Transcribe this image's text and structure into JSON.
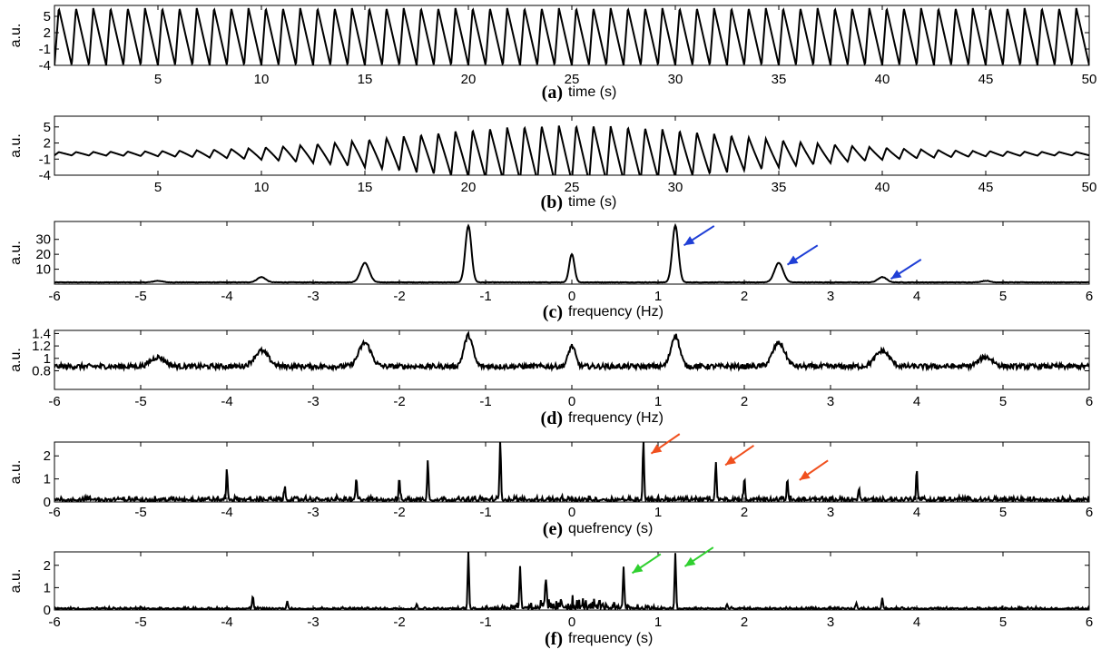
{
  "figure": {
    "colors": {
      "axis": "#000000",
      "trace": "#000000",
      "blue_arrow": "#1f3fd6",
      "red_arrow": "#f0501e",
      "green_arrow": "#2fd02f"
    }
  },
  "chart_data": [
    {
      "id": "a",
      "type": "line",
      "panel_label": "(a)",
      "xlabel": "time (s)",
      "ylabel": "a.u.",
      "xlim": [
        0,
        50
      ],
      "ylim": [
        -4,
        7
      ],
      "xticks": [
        5,
        10,
        15,
        20,
        25,
        30,
        35,
        40,
        45,
        50
      ],
      "yticks": [
        -4,
        -1,
        2,
        5
      ],
      "signal": {
        "kind": "sawtooth",
        "fundamental_hz": 1.2,
        "peak": 6.5,
        "trough": -4,
        "rise_fraction": 0.25,
        "envelope": "constant"
      },
      "arrows": []
    },
    {
      "id": "b",
      "type": "line",
      "panel_label": "(b)",
      "xlabel": "time (s)",
      "ylabel": "a.u.",
      "xlim": [
        0,
        50
      ],
      "ylim": [
        -4,
        7
      ],
      "xticks": [
        5,
        10,
        15,
        20,
        25,
        30,
        35,
        40,
        45,
        50
      ],
      "yticks": [
        -4,
        -1,
        2,
        5
      ],
      "signal": {
        "kind": "sawtooth",
        "fundamental_hz": 1.2,
        "peak": 6.5,
        "trough": -4,
        "rise_fraction": 0.25,
        "envelope": "gaussian",
        "envelope_center_s": 25,
        "envelope_sigma_s": 8,
        "baseline": 0
      },
      "arrows": []
    },
    {
      "id": "c",
      "type": "line",
      "panel_label": "(c)",
      "xlabel": "frequency (Hz)",
      "ylabel": "a.u.",
      "xlim": [
        -6,
        6
      ],
      "ylim": [
        0,
        42
      ],
      "xticks": [
        -6,
        -5,
        -4,
        -3,
        -2,
        -1,
        0,
        1,
        2,
        3,
        4,
        5,
        6
      ],
      "yticks": [
        10,
        20,
        30
      ],
      "signal": {
        "kind": "peaks",
        "baseline": 1.2,
        "noise": 0.15,
        "peaks": [
          {
            "x": -4.8,
            "h": 1,
            "w": 0.05
          },
          {
            "x": -3.6,
            "h": 3.5,
            "w": 0.05
          },
          {
            "x": -2.4,
            "h": 13,
            "w": 0.05
          },
          {
            "x": -1.2,
            "h": 38,
            "w": 0.035
          },
          {
            "x": 0,
            "h": 19,
            "w": 0.03
          },
          {
            "x": 1.2,
            "h": 38,
            "w": 0.035
          },
          {
            "x": 2.4,
            "h": 13,
            "w": 0.05
          },
          {
            "x": 3.6,
            "h": 3.5,
            "w": 0.05
          },
          {
            "x": 4.8,
            "h": 1,
            "w": 0.05
          }
        ]
      },
      "arrows": [
        {
          "color": "blue",
          "x": 1.3,
          "y": 26,
          "dx": 0.35,
          "dy": 13
        },
        {
          "color": "blue",
          "x": 2.5,
          "y": 13,
          "dx": 0.35,
          "dy": 13
        },
        {
          "color": "blue",
          "x": 3.7,
          "y": 3.5,
          "dx": 0.35,
          "dy": 13
        }
      ]
    },
    {
      "id": "d",
      "type": "line",
      "panel_label": "(d)",
      "xlabel": "frequency (Hz)",
      "ylabel": "a.u.",
      "xlim": [
        -6,
        6
      ],
      "ylim": [
        0.5,
        1.45
      ],
      "xticks": [
        -6,
        -5,
        -4,
        -3,
        -2,
        -1,
        0,
        1,
        2,
        3,
        4,
        5,
        6
      ],
      "yticks": [
        0.8,
        1,
        1.2,
        1.4
      ],
      "signal": {
        "kind": "peaks",
        "baseline": 0.87,
        "noise": 0.04,
        "peaks": [
          {
            "x": -4.8,
            "h": 0.15,
            "w": 0.08
          },
          {
            "x": -3.6,
            "h": 0.25,
            "w": 0.08
          },
          {
            "x": -2.4,
            "h": 0.38,
            "w": 0.07
          },
          {
            "x": -1.2,
            "h": 0.5,
            "w": 0.05
          },
          {
            "x": 0,
            "h": 0.33,
            "w": 0.04
          },
          {
            "x": 1.2,
            "h": 0.5,
            "w": 0.05
          },
          {
            "x": 2.4,
            "h": 0.38,
            "w": 0.07
          },
          {
            "x": 3.6,
            "h": 0.25,
            "w": 0.08
          },
          {
            "x": 4.8,
            "h": 0.15,
            "w": 0.08
          }
        ]
      },
      "arrows": []
    },
    {
      "id": "e",
      "type": "line",
      "panel_label": "(e)",
      "xlabel": "quefrency (s)",
      "ylabel": "a.u.",
      "xlim": [
        -6,
        6
      ],
      "ylim": [
        0,
        2.6
      ],
      "xticks": [
        -6,
        -5,
        -4,
        -3,
        -2,
        -1,
        0,
        1,
        2,
        3,
        4,
        5,
        6
      ],
      "yticks": [
        0,
        1,
        2
      ],
      "signal": {
        "kind": "spikes",
        "baseline": 0.05,
        "noise": 0.12,
        "spikes": [
          {
            "x": -4.0,
            "h": 1.3
          },
          {
            "x": -3.33,
            "h": 0.5
          },
          {
            "x": -2.5,
            "h": 0.9
          },
          {
            "x": -2.0,
            "h": 0.9
          },
          {
            "x": -1.67,
            "h": 1.7
          },
          {
            "x": -0.83,
            "h": 2.6
          },
          {
            "x": 0.83,
            "h": 2.6
          },
          {
            "x": 1.67,
            "h": 1.7
          },
          {
            "x": 2.0,
            "h": 0.9
          },
          {
            "x": 2.5,
            "h": 0.9
          },
          {
            "x": 3.33,
            "h": 0.5
          },
          {
            "x": 4.0,
            "h": 1.3
          }
        ]
      },
      "arrows": [
        {
          "color": "red",
          "x": 0.92,
          "y": 2.1,
          "dx": 0.33,
          "dy": 0.85
        },
        {
          "color": "red",
          "x": 1.78,
          "y": 1.6,
          "dx": 0.33,
          "dy": 0.85
        },
        {
          "color": "red",
          "x": 2.64,
          "y": 0.95,
          "dx": 0.33,
          "dy": 0.85
        }
      ]
    },
    {
      "id": "f",
      "type": "line",
      "panel_label": "(f)",
      "xlabel": "frequency (s)",
      "ylabel": "a.u.",
      "xlim": [
        -6,
        6
      ],
      "ylim": [
        0,
        2.6
      ],
      "xticks": [
        -6,
        -5,
        -4,
        -3,
        -2,
        -1,
        0,
        1,
        2,
        3,
        4,
        5,
        6
      ],
      "yticks": [
        0,
        1,
        2
      ],
      "signal": {
        "kind": "spikes",
        "baseline": 0.04,
        "noise": 0.05,
        "center_noise": 0.35,
        "spikes": [
          {
            "x": -3.7,
            "h": 0.55
          },
          {
            "x": -3.3,
            "h": 0.35
          },
          {
            "x": -1.8,
            "h": 0.2
          },
          {
            "x": -1.2,
            "h": 2.5
          },
          {
            "x": -0.6,
            "h": 1.9
          },
          {
            "x": -0.3,
            "h": 1.3
          },
          {
            "x": 0.6,
            "h": 1.9
          },
          {
            "x": 1.2,
            "h": 2.5
          },
          {
            "x": 1.8,
            "h": 0.2
          },
          {
            "x": 3.3,
            "h": 0.25
          },
          {
            "x": 3.6,
            "h": 0.5
          }
        ]
      },
      "arrows": [
        {
          "color": "green",
          "x": 0.7,
          "y": 1.65,
          "dx": 0.33,
          "dy": 0.85
        },
        {
          "color": "green",
          "x": 1.31,
          "y": 1.95,
          "dx": 0.33,
          "dy": 0.85
        }
      ]
    }
  ]
}
